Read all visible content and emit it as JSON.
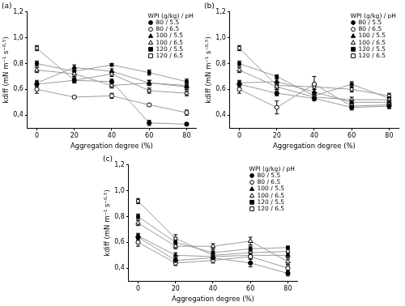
{
  "chart_data": [
    {
      "type": "line",
      "title": "(a)",
      "x_label": "Aggregation degree (%)",
      "y_label": "kdiff (mN m⁻¹ s⁻⁰·⁵)",
      "x": [
        0,
        20,
        40,
        60,
        80
      ],
      "xlim": [
        -5,
        85
      ],
      "xticks": [
        0,
        20,
        40,
        60,
        80
      ],
      "ylim": [
        0.3,
        1.2
      ],
      "yticks": [
        {
          "value": 0.4,
          "label": "0,4"
        },
        {
          "value": 0.6,
          "label": "0,6"
        },
        {
          "value": 0.8,
          "label": "0,8"
        },
        {
          "value": 1.0,
          "label": "1,0"
        },
        {
          "value": 1.2,
          "label": "1,2"
        }
      ],
      "grid": false,
      "legend": "top-right",
      "legend_title": "WPI (g/kg) / pH",
      "series": [
        {
          "name": "80 / 5.5",
          "color": "#000000",
          "marker": "circle",
          "line_style": "solid",
          "values": [
            0.64,
            0.67,
            0.66,
            0.34,
            0.33
          ],
          "errors": [
            0.02,
            0.02,
            0.02,
            0.02,
            0.01
          ]
        },
        {
          "name": "80 / 6.5",
          "color": "#000000",
          "marker": "circle_open",
          "line_style": "solid",
          "values": [
            0.6,
            0.54,
            0.55,
            0.48,
            0.42
          ],
          "errors": [
            0.03,
            0.01,
            0.02,
            0.01,
            0.02
          ]
        },
        {
          "name": "100 / 5.5",
          "color": "#000000",
          "marker": "triangle",
          "line_style": "solid",
          "values": [
            0.65,
            0.77,
            0.74,
            0.65,
            0.62
          ],
          "errors": [
            0.02,
            0.02,
            0.02,
            0.02,
            0.02
          ]
        },
        {
          "name": "100 / 6.5",
          "color": "#000000",
          "marker": "triangle_open",
          "line_style": "solid",
          "values": [
            0.75,
            0.72,
            0.63,
            0.65,
            0.63
          ],
          "errors": [
            0.02,
            0.02,
            0.02,
            0.02,
            0.02
          ]
        },
        {
          "name": "120 / 5.5",
          "color": "#000000",
          "marker": "square",
          "line_style": "solid",
          "values": [
            0.8,
            0.74,
            0.79,
            0.73,
            0.66
          ],
          "errors": [
            0.02,
            0.02,
            0.01,
            0.02,
            0.02
          ]
        },
        {
          "name": "120 / 6.5",
          "color": "#000000",
          "marker": "square_open",
          "line_style": "solid",
          "values": [
            0.92,
            0.67,
            0.72,
            0.59,
            0.57
          ],
          "errors": [
            0.02,
            0.02,
            0.02,
            0.02,
            0.02
          ]
        }
      ]
    },
    {
      "type": "line",
      "title": "(b)",
      "x_label": "Aggregation degree (%)",
      "y_label": "kdiff (mN m⁻¹ s⁻⁰·⁵)",
      "x": [
        0,
        20,
        40,
        60,
        80
      ],
      "xlim": [
        -5,
        85
      ],
      "xticks": [
        0,
        20,
        40,
        60,
        80
      ],
      "ylim": [
        0.3,
        1.2
      ],
      "yticks": [
        {
          "value": 0.4,
          "label": "0,4"
        },
        {
          "value": 0.6,
          "label": "0,6"
        },
        {
          "value": 0.8,
          "label": "0,8"
        },
        {
          "value": 1.0,
          "label": "1,0"
        },
        {
          "value": 1.2,
          "label": "1,2"
        }
      ],
      "grid": false,
      "legend": "top-right",
      "legend_title": "WPI (g/kg) / pH",
      "series": [
        {
          "name": "80 / 5.5",
          "color": "#000000",
          "marker": "circle",
          "line_style": "solid",
          "values": [
            0.64,
            0.57,
            0.53,
            0.46,
            0.47
          ],
          "errors": [
            0.02,
            0.02,
            0.02,
            0.02,
            0.02
          ]
        },
        {
          "name": "80 / 6.5",
          "color": "#000000",
          "marker": "circle_open",
          "line_style": "solid",
          "values": [
            0.6,
            0.46,
            0.64,
            0.47,
            0.48
          ],
          "errors": [
            0.03,
            0.05,
            0.06,
            0.02,
            0.02
          ]
        },
        {
          "name": "100 / 5.5",
          "color": "#000000",
          "marker": "triangle",
          "line_style": "solid",
          "values": [
            0.65,
            0.66,
            0.58,
            0.5,
            0.5
          ],
          "errors": [
            0.02,
            0.02,
            0.02,
            0.02,
            0.02
          ]
        },
        {
          "name": "100 / 6.5",
          "color": "#000000",
          "marker": "triangle_open",
          "line_style": "solid",
          "values": [
            0.75,
            0.62,
            0.54,
            0.52,
            0.52
          ],
          "errors": [
            0.02,
            0.02,
            0.02,
            0.02,
            0.02
          ]
        },
        {
          "name": "120 / 5.5",
          "color": "#000000",
          "marker": "square",
          "line_style": "solid",
          "values": [
            0.8,
            0.7,
            0.55,
            0.64,
            0.53
          ],
          "errors": [
            0.02,
            0.01,
            0.02,
            0.02,
            0.02
          ]
        },
        {
          "name": "120 / 6.5",
          "color": "#000000",
          "marker": "square_open",
          "line_style": "solid",
          "values": [
            0.92,
            0.63,
            0.62,
            0.6,
            0.55
          ],
          "errors": [
            0.02,
            0.03,
            0.02,
            0.02,
            0.02
          ]
        }
      ]
    },
    {
      "type": "line",
      "title": "(c)",
      "x_label": "Aggregation degree (%)",
      "y_label": "kdiff (mN m⁻¹ s⁻⁰·⁵)",
      "x": [
        0,
        20,
        40,
        60,
        80
      ],
      "xlim": [
        -5,
        85
      ],
      "xticks": [
        0,
        20,
        40,
        60,
        80
      ],
      "ylim": [
        0.3,
        1.2
      ],
      "yticks": [
        {
          "value": 0.4,
          "label": "0,4"
        },
        {
          "value": 0.6,
          "label": "0,6"
        },
        {
          "value": 0.8,
          "label": "0,8"
        },
        {
          "value": 1.0,
          "label": "1,0"
        },
        {
          "value": 1.2,
          "label": "1,2"
        }
      ],
      "grid": false,
      "legend": "top-right",
      "legend_title": "WPI (g/kg) / pH",
      "series": [
        {
          "name": "80 / 5.5",
          "color": "#000000",
          "marker": "circle",
          "line_style": "solid",
          "values": [
            0.64,
            0.46,
            0.48,
            0.44,
            0.36
          ],
          "errors": [
            0.02,
            0.02,
            0.02,
            0.03,
            0.02
          ]
        },
        {
          "name": "80 / 6.5",
          "color": "#000000",
          "marker": "circle_open",
          "line_style": "solid",
          "values": [
            0.6,
            0.44,
            0.46,
            0.49,
            0.4
          ],
          "errors": [
            0.03,
            0.02,
            0.02,
            0.02,
            0.02
          ]
        },
        {
          "name": "100 / 5.5",
          "color": "#000000",
          "marker": "triangle",
          "line_style": "solid",
          "values": [
            0.65,
            0.5,
            0.49,
            0.5,
            0.5
          ],
          "errors": [
            0.02,
            0.02,
            0.02,
            0.02,
            0.02
          ]
        },
        {
          "name": "100 / 6.5",
          "color": "#000000",
          "marker": "triangle_open",
          "line_style": "solid",
          "values": [
            0.75,
            0.57,
            0.57,
            0.61,
            0.45
          ],
          "errors": [
            0.02,
            0.02,
            0.02,
            0.03,
            0.02
          ]
        },
        {
          "name": "120 / 5.5",
          "color": "#000000",
          "marker": "square",
          "line_style": "solid",
          "values": [
            0.8,
            0.6,
            0.52,
            0.55,
            0.56
          ],
          "errors": [
            0.02,
            0.02,
            0.02,
            0.02,
            0.01
          ]
        },
        {
          "name": "120 / 6.5",
          "color": "#000000",
          "marker": "square_open",
          "line_style": "solid",
          "values": [
            0.92,
            0.63,
            0.5,
            0.52,
            0.53
          ],
          "errors": [
            0.02,
            0.03,
            0.02,
            0.02,
            0.02
          ]
        }
      ]
    }
  ]
}
